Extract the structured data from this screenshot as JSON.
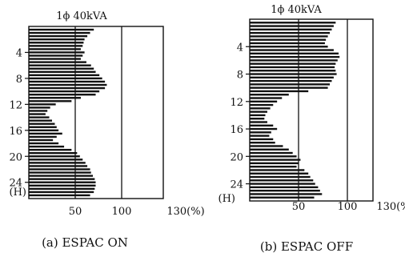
{
  "chart_data": [
    {
      "type": "bar",
      "orientation": "horizontal",
      "title": "1ϕ   40kVA",
      "xlabel": "",
      "ylabel": "(H)",
      "caption": "(a) ESPAC ON",
      "x_tick_labels": [
        "50",
        "100",
        "130(%)"
      ],
      "x_ticks": [
        50,
        100,
        130
      ],
      "y_tick_labels": [
        "4",
        "8",
        "12",
        "16",
        "20",
        "24"
      ],
      "y_ticks": [
        4,
        8,
        12,
        16,
        20,
        24
      ],
      "xlim": [
        0,
        130
      ],
      "ylim": [
        0.0,
        26.5
      ],
      "reference_lines": [
        50,
        100
      ],
      "grid": false,
      "bar_color": "#111111",
      "categories_hours": [
        0.5,
        1.0,
        1.5,
        2.0,
        2.5,
        3.0,
        3.5,
        4.0,
        4.5,
        5.0,
        5.5,
        6.0,
        6.5,
        7.0,
        7.5,
        8.0,
        8.5,
        9.0,
        9.5,
        10.0,
        10.5,
        11.0,
        11.5,
        12.0,
        12.5,
        13.0,
        13.5,
        14.0,
        14.5,
        15.0,
        15.5,
        16.0,
        16.5,
        17.0,
        17.5,
        18.0,
        18.5,
        19.0,
        19.5,
        20.0,
        20.5,
        21.0,
        21.5,
        22.0,
        22.5,
        23.0,
        23.5,
        24.0,
        24.5,
        25.0,
        25.5,
        26.0
      ],
      "values": [
        70,
        66,
        63,
        60,
        59,
        58,
        56,
        60,
        58,
        56,
        62,
        67,
        70,
        72,
        76,
        79,
        82,
        84,
        82,
        76,
        72,
        56,
        46,
        29,
        23,
        20,
        18,
        22,
        25,
        28,
        30,
        32,
        36,
        30,
        26,
        32,
        38,
        46,
        52,
        55,
        58,
        61,
        63,
        66,
        67,
        69,
        71,
        72,
        72,
        71,
        70,
        66
      ]
    },
    {
      "type": "bar",
      "orientation": "horizontal",
      "title": "1ϕ   40kVA",
      "xlabel": "",
      "ylabel": "(H)",
      "caption": "(b) ESPAC OFF",
      "x_tick_labels": [
        "50",
        "100",
        "130(%)"
      ],
      "x_ticks": [
        50,
        100,
        130
      ],
      "y_tick_labels": [
        "4",
        "8",
        "12",
        "16",
        "20",
        "24"
      ],
      "y_ticks": [
        4,
        8,
        12,
        16,
        20,
        24
      ],
      "xlim": [
        0,
        130
      ],
      "ylim": [
        0.0,
        26.5
      ],
      "reference_lines": [
        50,
        100
      ],
      "grid": false,
      "bar_color": "#111111",
      "categories_hours": [
        0.5,
        1.0,
        1.5,
        2.0,
        2.5,
        3.0,
        3.5,
        4.0,
        4.5,
        5.0,
        5.5,
        6.0,
        6.5,
        7.0,
        7.5,
        8.0,
        8.5,
        9.0,
        9.5,
        10.0,
        10.5,
        11.0,
        11.5,
        12.0,
        12.5,
        13.0,
        13.5,
        14.0,
        14.5,
        15.0,
        15.5,
        16.0,
        16.5,
        17.0,
        17.5,
        18.0,
        18.5,
        19.0,
        19.5,
        20.0,
        20.5,
        21.0,
        21.5,
        22.0,
        22.5,
        23.0,
        23.5,
        24.0,
        24.5,
        25.0,
        25.5,
        26.0
      ],
      "values": [
        88,
        86,
        84,
        82,
        80,
        78,
        77,
        80,
        86,
        91,
        92,
        90,
        88,
        87,
        88,
        89,
        86,
        84,
        82,
        80,
        60,
        40,
        33,
        28,
        24,
        21,
        18,
        16,
        15,
        18,
        24,
        28,
        22,
        20,
        24,
        26,
        34,
        40,
        44,
        48,
        52,
        50,
        48,
        56,
        60,
        62,
        65,
        67,
        70,
        72,
        74,
        66
      ]
    }
  ]
}
